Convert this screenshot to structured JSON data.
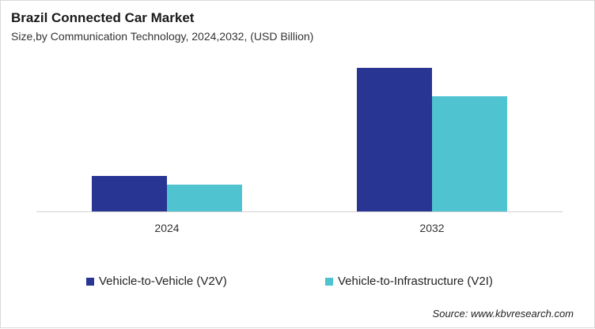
{
  "chart_data": {
    "type": "bar",
    "title": "Brazil Connected Car Market",
    "subtitle": "Size,by Communication Technology, 2024,2032, (USD Billion)",
    "categories": [
      "2024",
      "2032"
    ],
    "series": [
      {
        "name": "Vehicle-to-Vehicle (V2V)",
        "color": "#283593",
        "values": [
          0.45,
          1.82
        ]
      },
      {
        "name": "Vehicle-to-Infrastructure (V2I)",
        "color": "#4fc3cf",
        "values": [
          0.34,
          1.46
        ]
      }
    ],
    "ylim": [
      0,
      2
    ],
    "grid": false,
    "y_axis_labels_shown": false,
    "legend_placement": "bottom",
    "values_note_estimated_relative": true
  },
  "source": "Source: www.kbvresearch.com"
}
